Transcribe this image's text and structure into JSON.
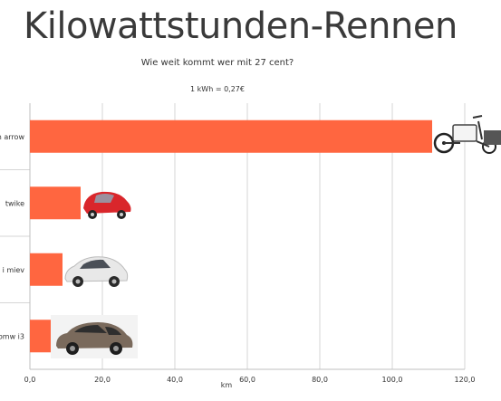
{
  "header": {
    "headline": "Kilowattstunden-Rennen"
  },
  "chart_data": {
    "type": "bar",
    "orientation": "horizontal",
    "title": "Wie weit kommt wer mit 27 cent?",
    "subtitle": "1 kWh = 0,27€",
    "categories": [
      "n arrow",
      "twike",
      "i miev",
      "bmw i3"
    ],
    "values": [
      111,
      14,
      9,
      6
    ],
    "xlabel": "km",
    "ylabel": "",
    "xlim": [
      0,
      120
    ],
    "xticks": [
      "0,0",
      "20,0",
      "40,0",
      "60,0",
      "80,0",
      "100,0",
      "120,0"
    ],
    "grid": true,
    "bar_color": "#ff6640",
    "icons": [
      "cargo-bike-icon",
      "twike-vehicle-icon",
      "i-miev-car-icon",
      "bmw-i3-car-icon"
    ]
  }
}
